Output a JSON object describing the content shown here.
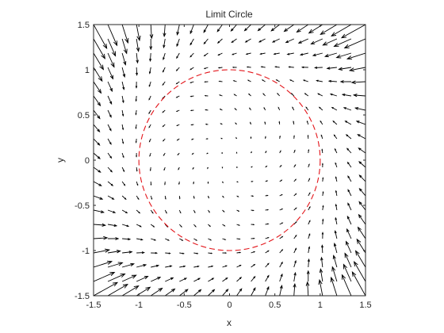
{
  "chart_data": {
    "type": "quiver",
    "title": "Limit Circle",
    "xlabel": "x",
    "ylabel": "y",
    "xlim": [
      -1.5,
      1.5
    ],
    "ylim": [
      -1.5,
      1.5
    ],
    "xticks": [
      -1.5,
      -1,
      -0.5,
      0,
      0.5,
      1,
      1.5
    ],
    "xtick_labels": [
      "-1.5",
      "-1",
      "-0.5",
      "0",
      "0.5",
      "1",
      "1.5"
    ],
    "yticks": [
      -1.5,
      -1,
      -0.5,
      0,
      0.5,
      1,
      1.5
    ],
    "ytick_labels": [
      "-1.5",
      "-1",
      "-0.5",
      "0",
      "0.5",
      "1",
      "1.5"
    ],
    "grid": false,
    "vector_field": {
      "equations": {
        "dx": "-y + x*(1 - x^2 - y^2)",
        "dy": "x + y*(1 - x^2 - y^2)"
      },
      "x_range": [
        -1.5,
        1.5
      ],
      "y_range": [
        -1.5,
        1.5
      ],
      "grid_points": 20,
      "color": "#000000"
    },
    "limit_cycle": {
      "center": [
        0,
        0
      ],
      "radius": 1,
      "style": "dashed",
      "color": "#e3151a"
    }
  }
}
